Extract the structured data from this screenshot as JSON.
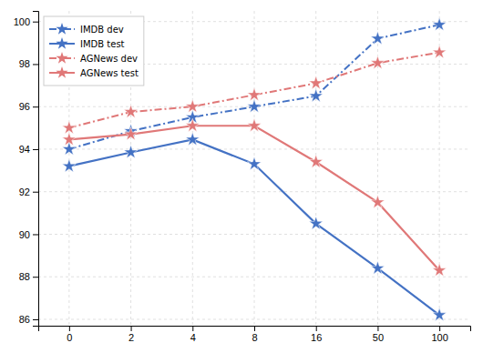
{
  "chart_data": {
    "type": "line",
    "categories": [
      "0",
      "2",
      "4",
      "8",
      "16",
      "50",
      "100"
    ],
    "series": [
      {
        "name": "IMDB dev",
        "color": "#4472C4",
        "line_style": "dash-dot",
        "marker": "star",
        "values": [
          94.0,
          94.85,
          95.5,
          96.0,
          96.5,
          99.2,
          99.85
        ]
      },
      {
        "name": "IMDB test",
        "color": "#4472C4",
        "line_style": "solid",
        "marker": "star",
        "values": [
          93.2,
          93.85,
          94.45,
          93.3,
          90.5,
          88.4,
          86.2
        ]
      },
      {
        "name": "AGNews dev",
        "color": "#E07878",
        "line_style": "dash-dot",
        "marker": "star",
        "values": [
          95.0,
          95.75,
          96.0,
          96.55,
          97.1,
          98.05,
          98.55
        ]
      },
      {
        "name": "AGNews test",
        "color": "#E07878",
        "line_style": "solid",
        "marker": "star",
        "values": [
          94.45,
          94.7,
          95.1,
          95.1,
          93.4,
          91.5,
          88.3
        ]
      }
    ],
    "ylim": [
      85.7,
      100.5
    ],
    "yticks": [
      86,
      88,
      90,
      92,
      94,
      96,
      98,
      100
    ],
    "grid": true,
    "legend": "upper left"
  }
}
